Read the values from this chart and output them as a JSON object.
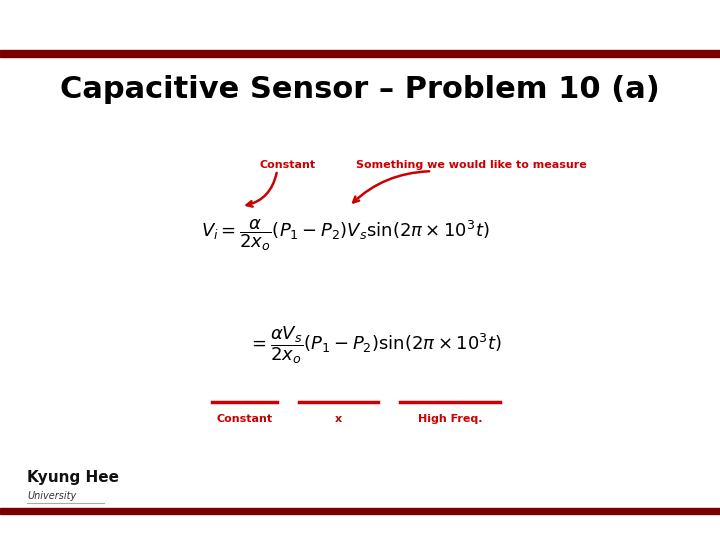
{
  "title": "Capacitive Sensor – Problem 10 (a)",
  "background_color": "#ffffff",
  "bar_color": "#7a0000",
  "title_color": "#000000",
  "title_fontsize": 22,
  "red_color": "#cc0000",
  "eq_color": "#000000",
  "label_constant1": "Constant",
  "label_something": "Something we would like to measure",
  "label_constant2": "Constant",
  "label_x": "x",
  "label_highfreq": "High Freq.",
  "kyunghee_text": "Kyung Hee",
  "university_text": "University"
}
